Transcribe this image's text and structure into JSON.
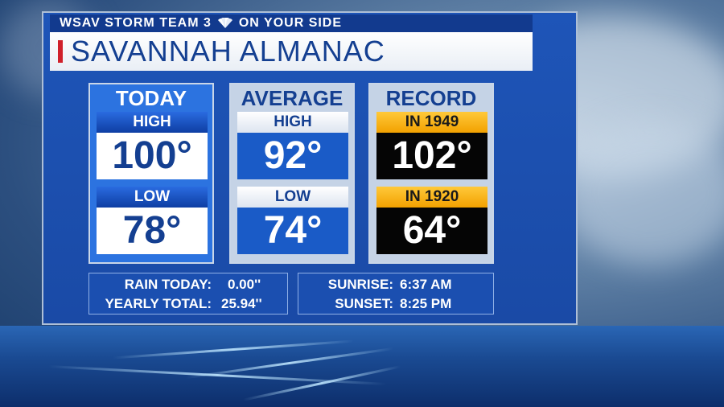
{
  "header": {
    "station": "WSAV STORM TEAM 3",
    "tagline": "ON YOUR SIDE",
    "title": "SAVANNAH ALMANAC"
  },
  "columns": [
    {
      "heading": "TODAY",
      "high_label": "HIGH",
      "high_value": "100°",
      "low_label": "LOW",
      "low_value": "78°"
    },
    {
      "heading": "AVERAGE",
      "high_label": "HIGH",
      "high_value": "92°",
      "low_label": "LOW",
      "low_value": "74°"
    },
    {
      "heading": "RECORD",
      "high_label": "IN 1949",
      "high_value": "102°",
      "low_label": "IN 1920",
      "low_value": "64°"
    }
  ],
  "rain": {
    "today_label": "RAIN TODAY:",
    "today_value": "0.00''",
    "yearly_label": "YEARLY TOTAL:",
    "yearly_value": "25.94''"
  },
  "sun": {
    "sunrise_label": "SUNRISE:",
    "sunrise_value": "6:37 AM",
    "sunset_label": "SUNSET:",
    "sunset_value": "8:25 PM"
  },
  "colors": {
    "panel_blue": "#1e55b8",
    "title_blue": "#143f91",
    "record_gold": "#f2a100",
    "accent_red": "#d0202a"
  },
  "icons": [
    "nbc-peacock-icon"
  ]
}
